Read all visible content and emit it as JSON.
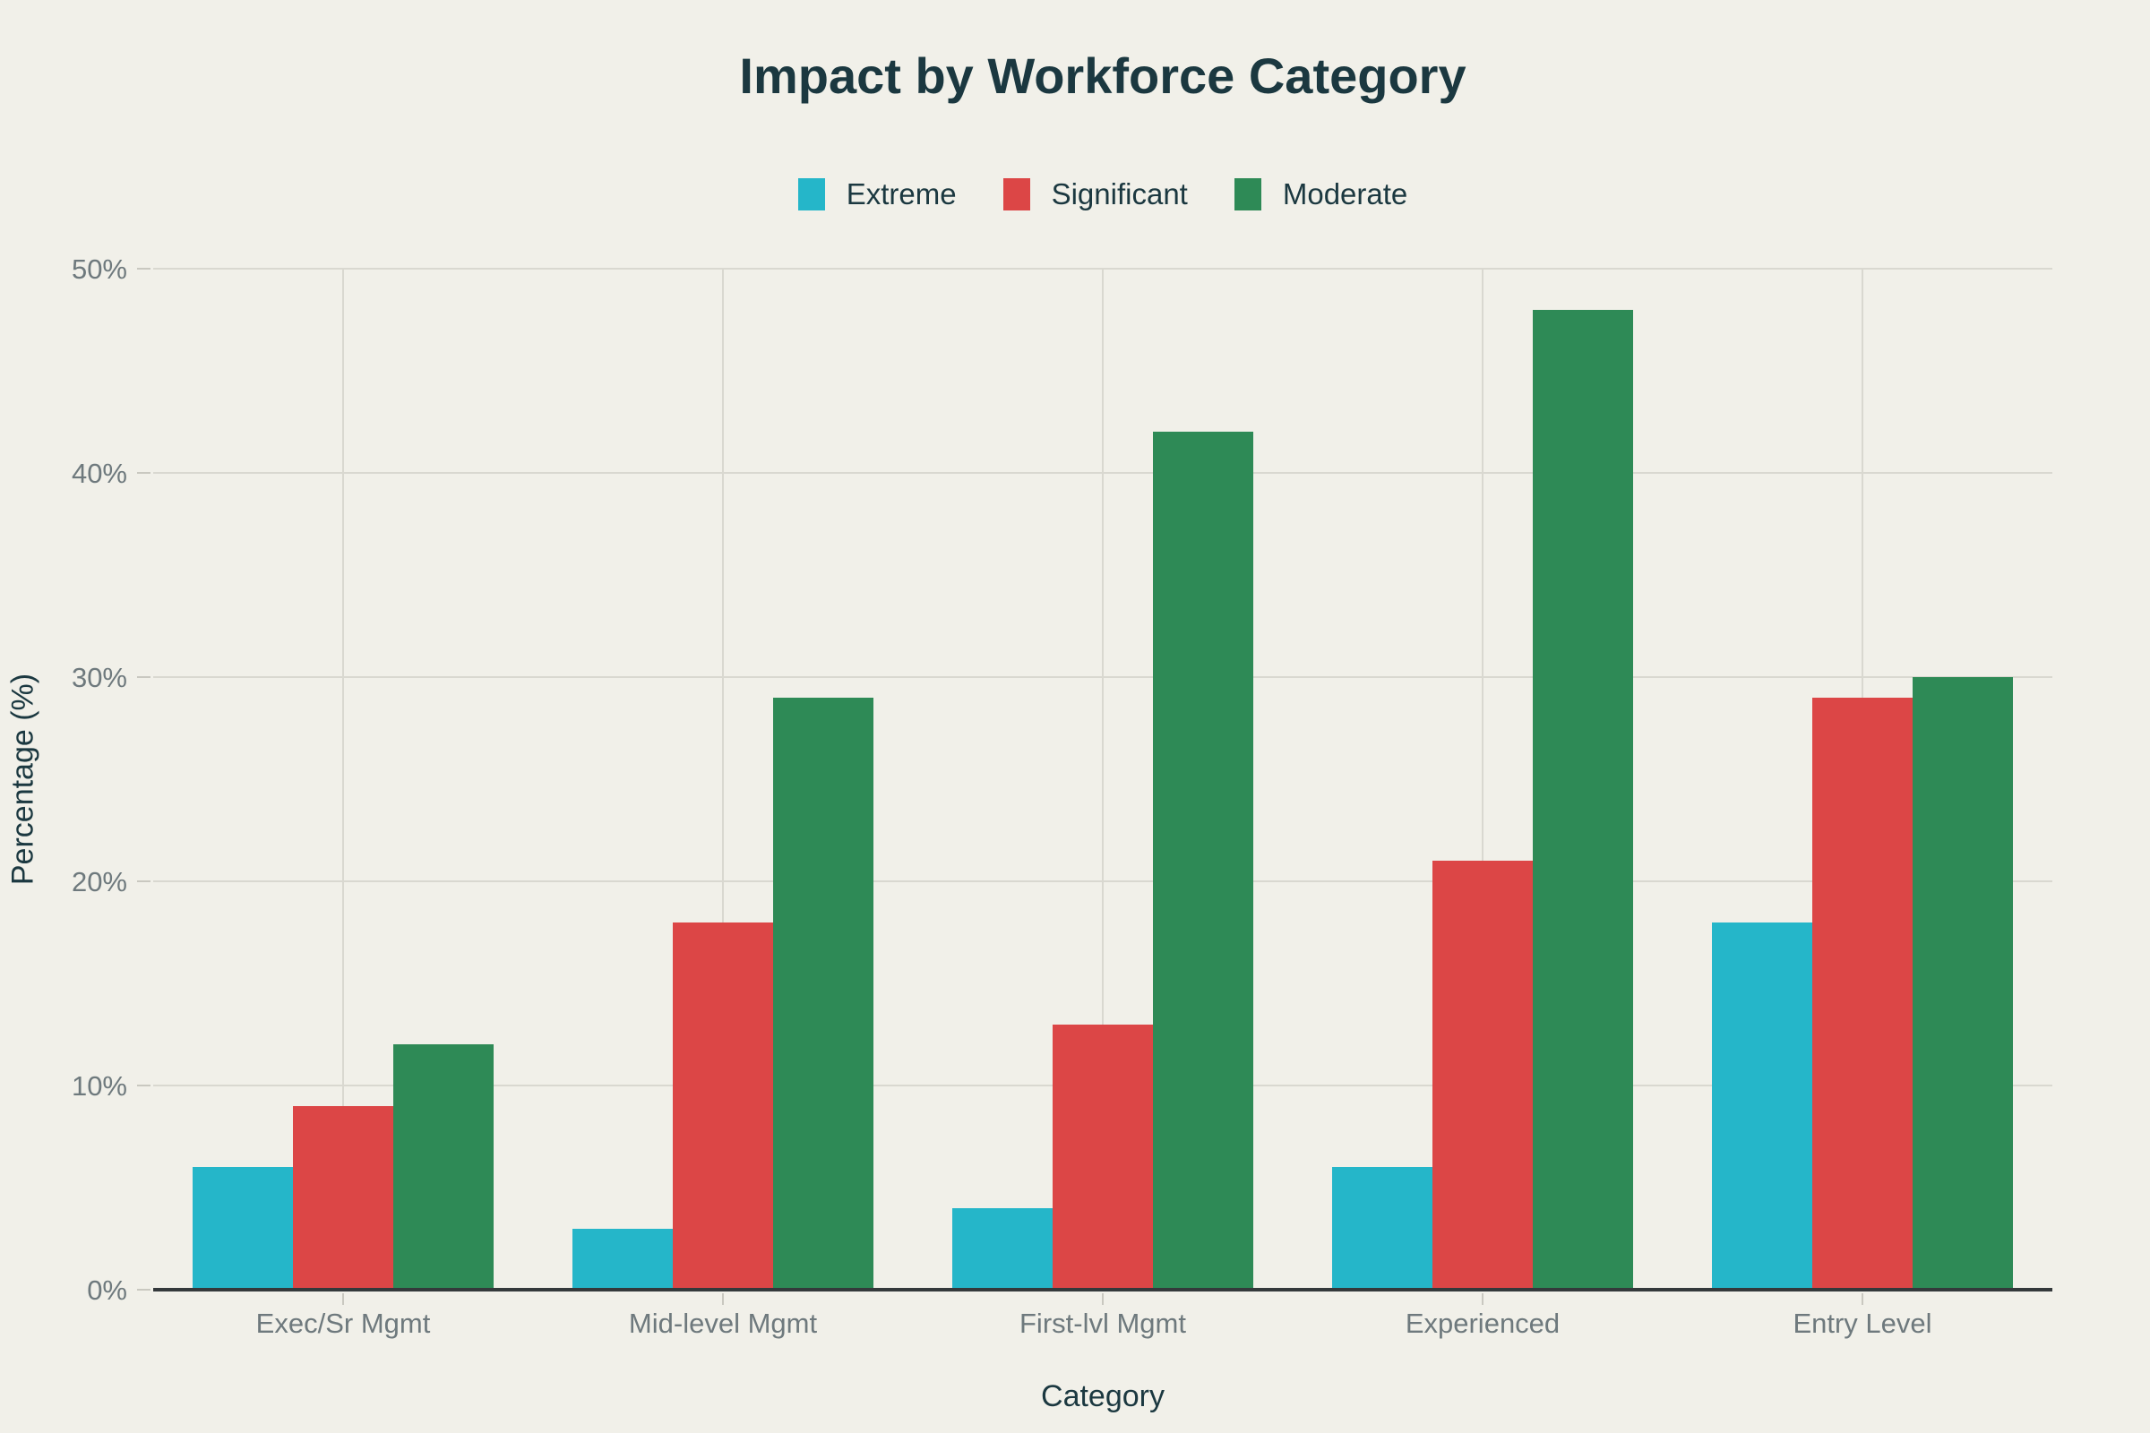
{
  "title": "Impact by Workforce Category",
  "chart_data": {
    "type": "bar",
    "title": "Impact by Workforce Category",
    "categories": [
      "Exec/Sr Mgmt",
      "Mid-level Mgmt",
      "First-lvl Mgmt",
      "Experienced",
      "Entry Level"
    ],
    "series": [
      {
        "name": "Extreme",
        "color": "#25b6c9",
        "values": [
          6,
          3,
          4,
          6,
          18
        ]
      },
      {
        "name": "Significant",
        "color": "#dc4646",
        "values": [
          9,
          18,
          13,
          21,
          29
        ]
      },
      {
        "name": "Moderate",
        "color": "#2e8a56",
        "values": [
          12,
          29,
          42,
          48,
          30
        ]
      }
    ],
    "xlabel": "Category",
    "ylabel": "Percentage (%)",
    "ylim": [
      0,
      50
    ],
    "yticks": [
      0,
      10,
      20,
      30,
      40,
      50
    ],
    "ytick_labels": [
      "0%",
      "10%",
      "20%",
      "30%",
      "40%",
      "50%"
    ],
    "grid": true,
    "legend_position": "top"
  },
  "colors": {
    "background": "#f1f0e9",
    "gridline": "#d9d8d0",
    "axis_line": "#34393b",
    "tick_label": "#6e797d",
    "heading": "#1b3840"
  }
}
